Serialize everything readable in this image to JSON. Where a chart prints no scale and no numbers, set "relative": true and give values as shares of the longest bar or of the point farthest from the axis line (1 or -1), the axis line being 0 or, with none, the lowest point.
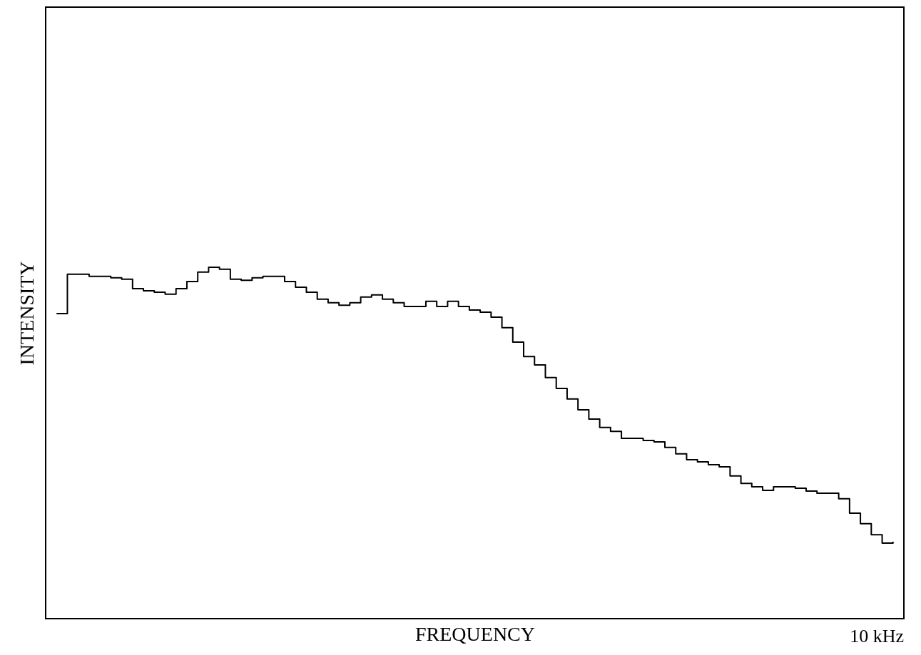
{
  "chart_data": {
    "type": "step",
    "xlabel": "FREQUENCY",
    "ylabel": "INTENSITY",
    "relative": true,
    "categories": [
      null,
      null,
      null,
      null,
      null,
      null,
      null,
      null,
      null,
      null,
      null,
      null,
      null,
      null,
      null,
      null,
      null,
      null,
      null,
      null,
      null,
      null,
      null,
      null,
      null,
      null,
      null,
      null,
      null,
      null,
      null,
      null,
      null,
      null,
      null,
      null,
      null,
      null,
      null,
      null,
      null,
      null,
      null,
      null,
      null,
      null,
      null,
      null,
      null,
      null,
      null,
      null,
      null,
      null,
      null,
      null,
      null,
      null,
      null,
      null,
      null,
      null,
      null,
      null,
      null,
      null,
      null,
      null,
      null,
      null,
      null,
      null,
      null,
      null,
      null,
      null,
      null,
      null
    ],
    "annotations": [
      "10 kHz"
    ],
    "marker": "none",
    "line_style": "solid",
    "series": [
      {
        "color": "#000000",
        "values": [
          0.868,
          0.98,
          0.98,
          0.974,
          0.974,
          0.97,
          0.966,
          0.939,
          0.933,
          0.929,
          0.923,
          0.939,
          0.959,
          0.986,
          1,
          0.994,
          0.966,
          0.963,
          0.97,
          0.974,
          0.974,
          0.959,
          0.943,
          0.929,
          0.909,
          0.899,
          0.892,
          0.899,
          0.915,
          0.921,
          0.909,
          0.899,
          0.888,
          0.888,
          0.903,
          0.888,
          0.903,
          0.888,
          0.878,
          0.872,
          0.858,
          0.828,
          0.787,
          0.746,
          0.722,
          0.686,
          0.655,
          0.625,
          0.594,
          0.568,
          0.544,
          0.533,
          0.513,
          0.513,
          0.507,
          0.503,
          0.487,
          0.469,
          0.452,
          0.446,
          0.438,
          0.432,
          0.406,
          0.385,
          0.375,
          0.365,
          0.375,
          0.375,
          0.371,
          0.363,
          0.357,
          0.357,
          0.341,
          0.3,
          0.27,
          0.239,
          0.215,
          0.219
        ]
      }
    ]
  }
}
